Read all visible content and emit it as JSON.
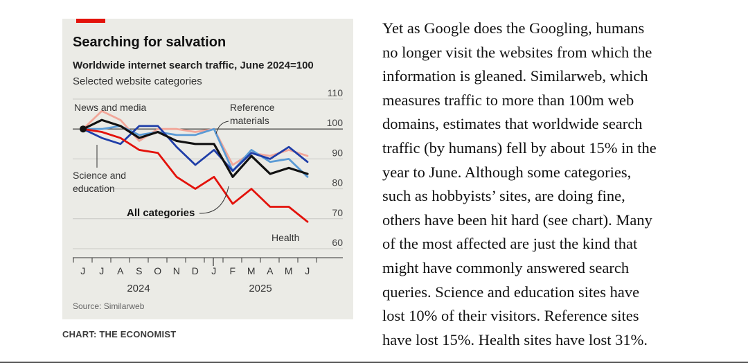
{
  "chart_data": {
    "type": "line",
    "title": "Searching for salvation",
    "subtitle": "Worldwide internet search traffic, June 2024=100",
    "subtitle2": "Selected website categories",
    "source": "Source: Similarweb",
    "x": [
      "J",
      "J",
      "A",
      "S",
      "O",
      "N",
      "D",
      "J",
      "F",
      "M",
      "A",
      "M",
      "J"
    ],
    "year_labels": [
      "2024",
      "2025"
    ],
    "ylim": [
      60,
      110
    ],
    "yticks": [
      "110",
      "100",
      "90",
      "80",
      "70",
      "60"
    ],
    "series": [
      {
        "name": "News and media",
        "color": "#f2a79a",
        "values": [
          100,
          106,
          103,
          96,
          100,
          100,
          99,
          100,
          88,
          92,
          91,
          93,
          91
        ]
      },
      {
        "name": "Reference materials",
        "color": "#5b9bd5",
        "values": [
          100,
          100,
          101,
          98,
          99,
          98,
          98,
          100,
          86,
          93,
          89,
          90,
          84
        ]
      },
      {
        "name": "Science and education",
        "color": "#1f3ea8",
        "values": [
          100,
          97,
          95,
          101,
          101,
          94,
          88,
          93,
          86,
          92,
          90,
          94,
          89
        ]
      },
      {
        "name": "All categories",
        "color": "#111111",
        "values": [
          100,
          103,
          101,
          97,
          99,
          96,
          95,
          95,
          84,
          91,
          85,
          87,
          85
        ]
      },
      {
        "name": "Health",
        "color": "#e3120b",
        "values": [
          100,
          99,
          97,
          93,
          92,
          84,
          80,
          84,
          75,
          80,
          74,
          74,
          69
        ]
      }
    ],
    "annotations": {
      "news": "News and media",
      "reference1": "Reference",
      "reference2": "materials",
      "science1": "Science and",
      "science2": "education",
      "all": "All categories",
      "health": "Health"
    }
  },
  "credit": "CHART: THE ECONOMIST",
  "article_lines": [
    "Yet as Google does the Googling, humans",
    "no longer visit the websites from which the",
    "information is gleaned. Similarweb, which",
    "measures traffic to more than 100m web",
    "domains, estimates that worldwide search",
    "traffic (by humans) fell by about 15% in the",
    "year to June. Although some categories,",
    "such as hobbyists’ sites, are doing fine,",
    "others have been hit hard (see chart). Many",
    "of the most affected are just the kind that",
    "might have commonly answered search",
    "queries. Science and education sites have",
    "lost 10% of their visitors. Reference sites",
    "have lost 15%. Health sites have lost 31%."
  ]
}
